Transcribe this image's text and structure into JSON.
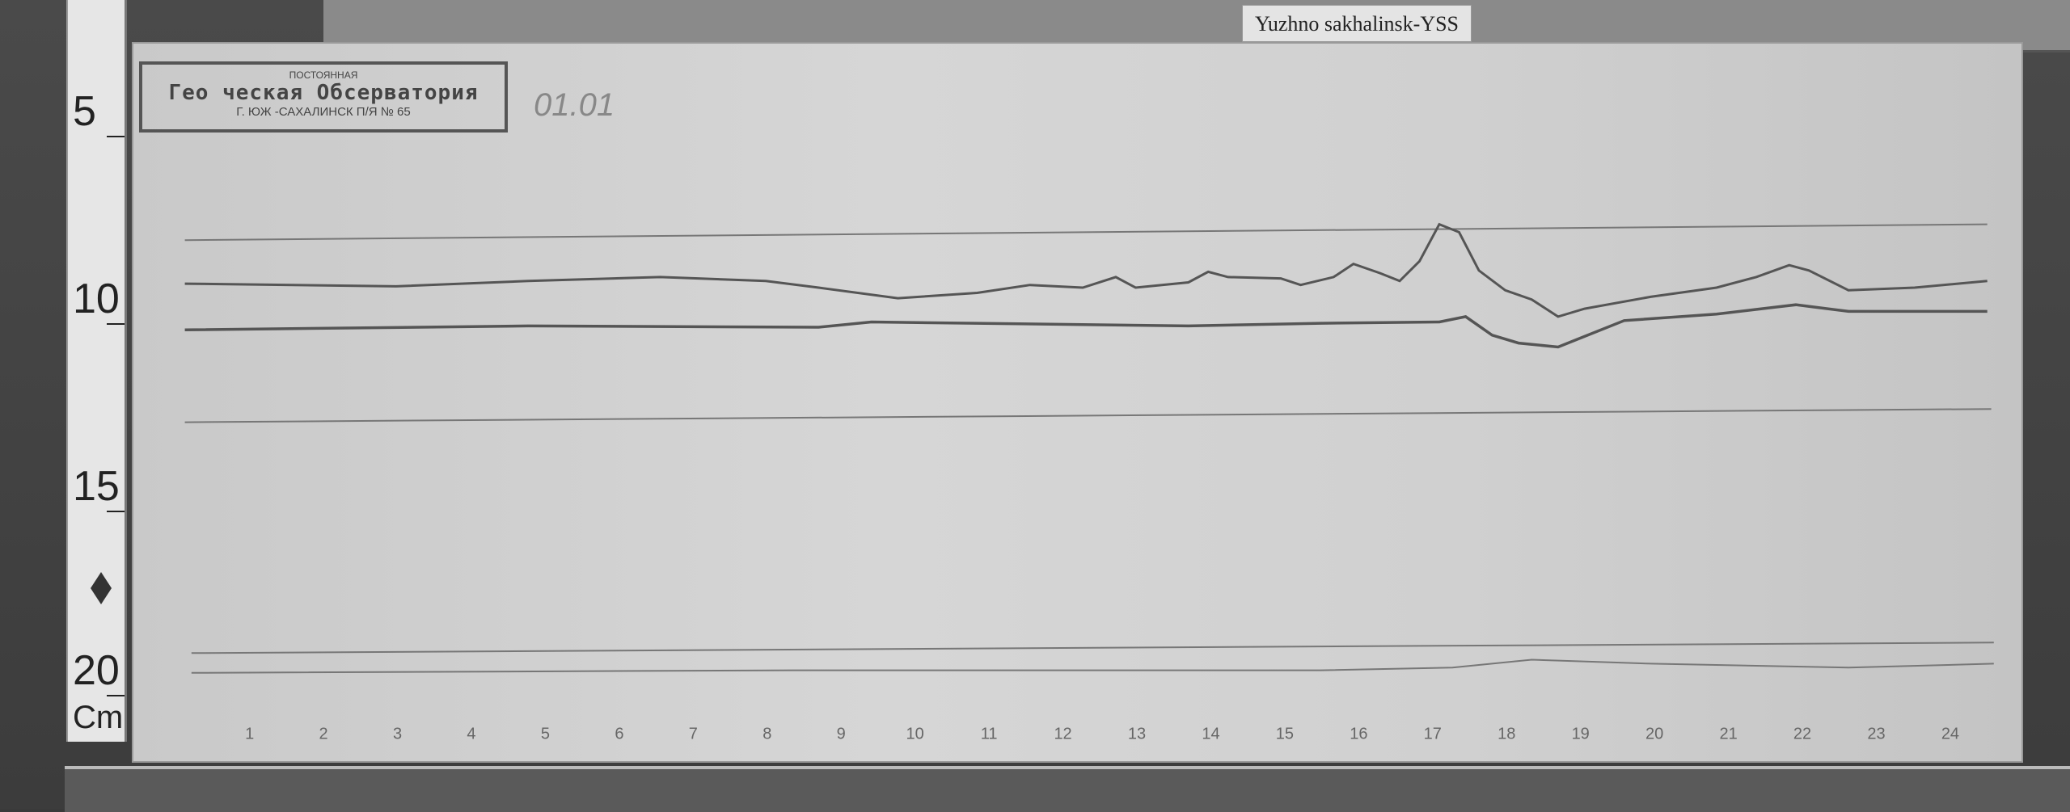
{
  "station_label": "Yuzhno sakhalinsk-YSS",
  "stamp": {
    "line1": "ПОСТОЯННАЯ",
    "line2": "Гео    ческая Обсерватория",
    "line3": "Г. ЮЖ   -САХАЛИНСК П/Я № 65"
  },
  "date_handwritten": "01.01",
  "ruler": {
    "labels": [
      "5",
      "10",
      "15",
      "20",
      "Cm"
    ]
  },
  "hour_labels": [
    "1",
    "2",
    "3",
    "4",
    "5",
    "6",
    "7",
    "8",
    "9",
    "10",
    "11",
    "12",
    "13",
    "14",
    "15",
    "16",
    "17",
    "18",
    "19",
    "20",
    "21",
    "22",
    "23",
    "24"
  ],
  "colors": {
    "paper": "#d0d0d0",
    "trace": "#555555",
    "baseline": "#777777"
  }
}
